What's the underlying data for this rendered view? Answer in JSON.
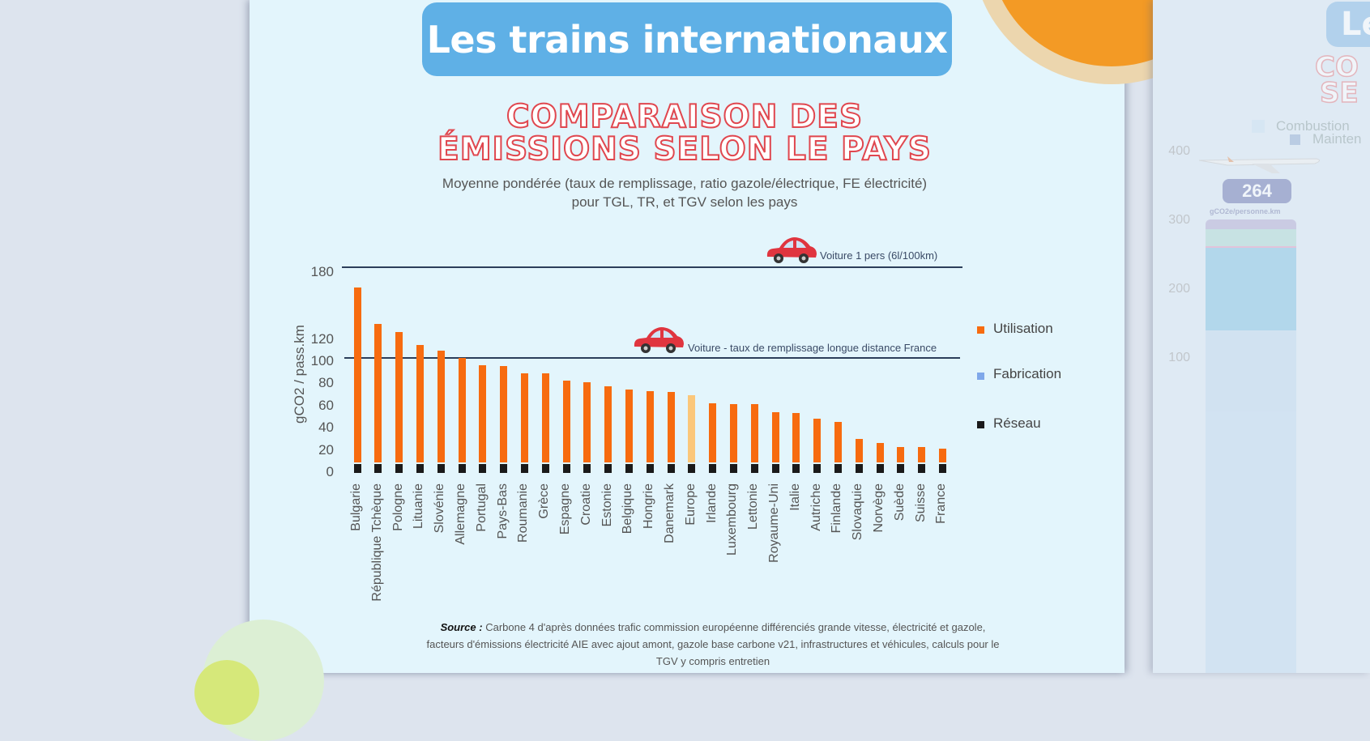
{
  "slide": {
    "title": "Les trains internationaux",
    "heading_line1": "COMPARAISON DES",
    "heading_line2": "ÉMISSIONS SELON LE PAYS",
    "subtitle_line1": "Moyenne pondérée  (taux de remplissage, ratio gazole/électrique, FE électricité)",
    "subtitle_line2": "pour TGL, TR, et TGV selon les pays",
    "source_label": "Source :",
    "source_text": "Carbone 4 d'après données trafic commission européenne différenciés grande vitesse, électricité et gazole, facteurs d'émissions électricité AIE avec ajout amont, gazole base carbone v21, infrastructures et véhicules, calculs pour le TGV y compris entretien"
  },
  "chart_data": {
    "type": "bar",
    "stacked": true,
    "ylabel": "gCO2 / pass.km",
    "yticks": [
      0,
      20,
      40,
      60,
      80,
      100,
      120,
      180
    ],
    "ylim": [
      0,
      190
    ],
    "categories": [
      "Bulgarie",
      "République Tchèque",
      "Pologne",
      "Lituanie",
      "Slovénie",
      "Allemagne",
      "Portugal",
      "Pays-Bas",
      "Roumanie",
      "Grèce",
      "Espagne",
      "Croatie",
      "Estonie",
      "Belgique",
      "Hongrie",
      "Danemark",
      "Europe",
      "Irlande",
      "Luxembourg",
      "Lettonie",
      "Royaume-Uni",
      "Italie",
      "Autriche",
      "Finlande",
      "Slovaquie",
      "Norvège",
      "Suède",
      "Suisse",
      "France"
    ],
    "highlight_category": "Europe",
    "series": [
      {
        "name": "Réseau",
        "color": "#1a1a1a",
        "values": [
          8,
          8,
          8,
          8,
          8,
          8,
          8,
          8,
          8,
          8,
          8,
          8,
          8,
          8,
          8,
          8,
          8,
          8,
          8,
          8,
          8,
          8,
          8,
          8,
          8,
          8,
          8,
          8,
          8
        ]
      },
      {
        "name": "Fabrication",
        "color": "#7fa8ea",
        "values": [
          0,
          0,
          0,
          0,
          0,
          0,
          0,
          0,
          0,
          0,
          0,
          0,
          0,
          0,
          0,
          0,
          0,
          0,
          0,
          0,
          0,
          0,
          0,
          0,
          0,
          0,
          0,
          0,
          0
        ]
      },
      {
        "name": "Utilisation",
        "color": "#f76b0f",
        "highlight_color": "#fbc77a",
        "values": [
          159,
          126,
          119,
          107,
          102,
          96,
          89,
          88,
          82,
          82,
          75,
          74,
          70,
          67,
          66,
          65,
          62,
          55,
          54,
          54,
          47,
          46,
          41,
          38,
          23,
          19,
          15,
          15,
          14
        ]
      }
    ],
    "legend": [
      "Utilisation",
      "Fabrication",
      "Réseau"
    ],
    "legend_position": "right",
    "reference_lines": [
      {
        "label": "Voiture 1 pers (6l/100km)",
        "value": 187
      },
      {
        "label": "Voiture - taux de remplissage longue distance France",
        "value": 100
      }
    ]
  },
  "next_slide": {
    "title_fragment": "Le",
    "heading_fragment1": "CO",
    "heading_fragment2": "SE",
    "legend": [
      "Combustion",
      "Mainten"
    ],
    "yticks": [
      "400",
      "300",
      "200",
      "100"
    ],
    "badge_value": "264",
    "badge_unit": "gCO2e/personne.km"
  }
}
